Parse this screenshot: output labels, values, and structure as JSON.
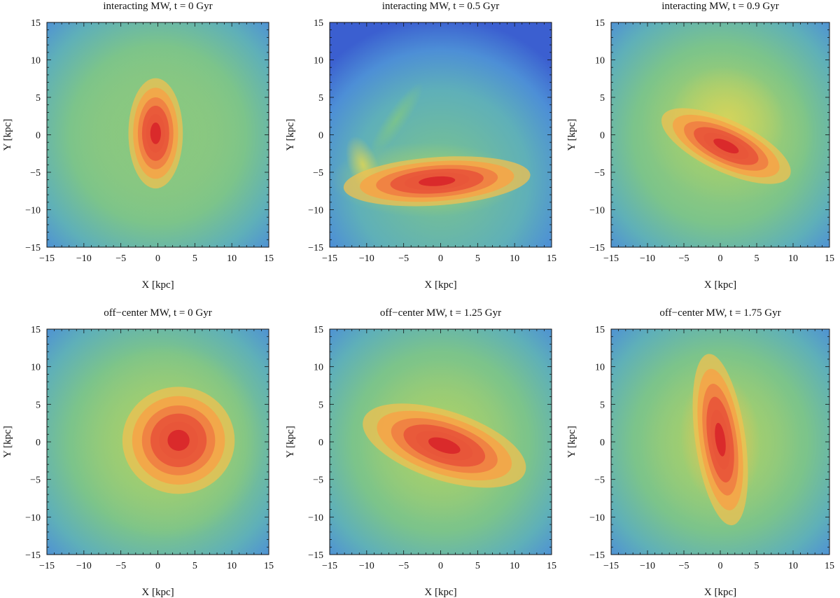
{
  "figure": {
    "description_free": true
  },
  "colors": {
    "scale": [
      "#4c1fa8",
      "#3b5fd0",
      "#4d8fd6",
      "#5fb0b8",
      "#7cc48a",
      "#a9d06a",
      "#d8d45a",
      "#f0c050",
      "#f4a548",
      "#f07e42",
      "#e8553a",
      "#d8262a"
    ],
    "frame": "#111111",
    "background": "#ffffff"
  },
  "chart_data": [
    {
      "type": "heatmap",
      "title": "interacting MW, t = 0 Gyr",
      "xlabel": "X [kpc]",
      "ylabel": "Y [kpc]",
      "xlim": [
        -15,
        15
      ],
      "ylim": [
        -15,
        15
      ],
      "xticks": [
        "−15",
        "−10",
        "−5",
        "0",
        "5",
        "10",
        "15"
      ],
      "yticks": [
        "15",
        "10",
        "5",
        "0",
        "−5",
        "−10",
        "−15"
      ],
      "peak": {
        "x": -0.3,
        "y": 0.2,
        "sx": 1.6,
        "sy": 3.2,
        "angle": 0
      },
      "features": "centrally concentrated disc, density decreasing to the corners"
    },
    {
      "type": "heatmap",
      "title": "interacting MW, t = 0.5 Gyr",
      "xlabel": "X [kpc]",
      "ylabel": "Y [kpc]",
      "xlim": [
        -15,
        15
      ],
      "ylim": [
        -15,
        15
      ],
      "xticks": [
        "−15",
        "−10",
        "−5",
        "0",
        "5",
        "10",
        "15"
      ],
      "yticks": [
        "15",
        "10",
        "5",
        "0",
        "−5",
        "−10",
        "−15"
      ],
      "peak": {
        "x": -0.5,
        "y": -6.2,
        "sx": 5.5,
        "sy": 1.4,
        "angle": 4
      },
      "features": "displaced bar near y = -6 kpc with a tidal arm extending to upper left"
    },
    {
      "type": "heatmap",
      "title": "interacting MW, t = 0.9 Gyr",
      "xlabel": "X [kpc]",
      "ylabel": "Y [kpc]",
      "xlim": [
        -15,
        15
      ],
      "ylim": [
        -15,
        15
      ],
      "xticks": [
        "−15",
        "−10",
        "−5",
        "0",
        "5",
        "10",
        "15"
      ],
      "yticks": [
        "15",
        "10",
        "5",
        "0",
        "−5",
        "−10",
        "−15"
      ],
      "peak": {
        "x": 0.8,
        "y": -1.5,
        "sx": 4.2,
        "sy": 1.5,
        "angle": -25
      },
      "features": "tilted bar with wide ring-like outer structure"
    },
    {
      "type": "heatmap",
      "title": "off−center MW, t = 0 Gyr",
      "xlabel": "X [kpc]",
      "ylabel": "Y [kpc]",
      "xlim": [
        -15,
        15
      ],
      "ylim": [
        -15,
        15
      ],
      "xticks": [
        "−15",
        "−10",
        "−5",
        "0",
        "5",
        "10",
        "15"
      ],
      "yticks": [
        "15",
        "10",
        "5",
        "0",
        "−5",
        "−10",
        "−15"
      ],
      "peak": {
        "x": 2.8,
        "y": 0.2,
        "sx": 3.3,
        "sy": 3.1,
        "angle": 0
      },
      "features": "round off-center disc"
    },
    {
      "type": "heatmap",
      "title": "off−center MW, t = 1.25 Gyr",
      "xlabel": "X [kpc]",
      "ylabel": "Y [kpc]",
      "xlim": [
        -15,
        15
      ],
      "ylim": [
        -15,
        15
      ],
      "xticks": [
        "−15",
        "−10",
        "−5",
        "0",
        "5",
        "10",
        "15"
      ],
      "yticks": [
        "15",
        "10",
        "5",
        "0",
        "−5",
        "−10",
        "−15"
      ],
      "peak": {
        "x": 0.5,
        "y": -0.5,
        "sx": 5.0,
        "sy": 2.0,
        "angle": -18
      },
      "features": "elongated tilted bar inside a ring"
    },
    {
      "type": "heatmap",
      "title": "off−center MW, t = 1.75 Gyr",
      "xlabel": "X [kpc]",
      "ylabel": "Y [kpc]",
      "xlim": [
        -15,
        15
      ],
      "ylim": [
        -15,
        15
      ],
      "xticks": [
        "−15",
        "−10",
        "−5",
        "0",
        "5",
        "10",
        "15"
      ],
      "yticks": [
        "15",
        "10",
        "5",
        "0",
        "−5",
        "−10",
        "−15"
      ],
      "peak": {
        "x": 0.0,
        "y": 0.3,
        "sx": 1.5,
        "sy": 5.0,
        "angle": 8
      },
      "features": "vertical bar elongated along Y"
    }
  ]
}
